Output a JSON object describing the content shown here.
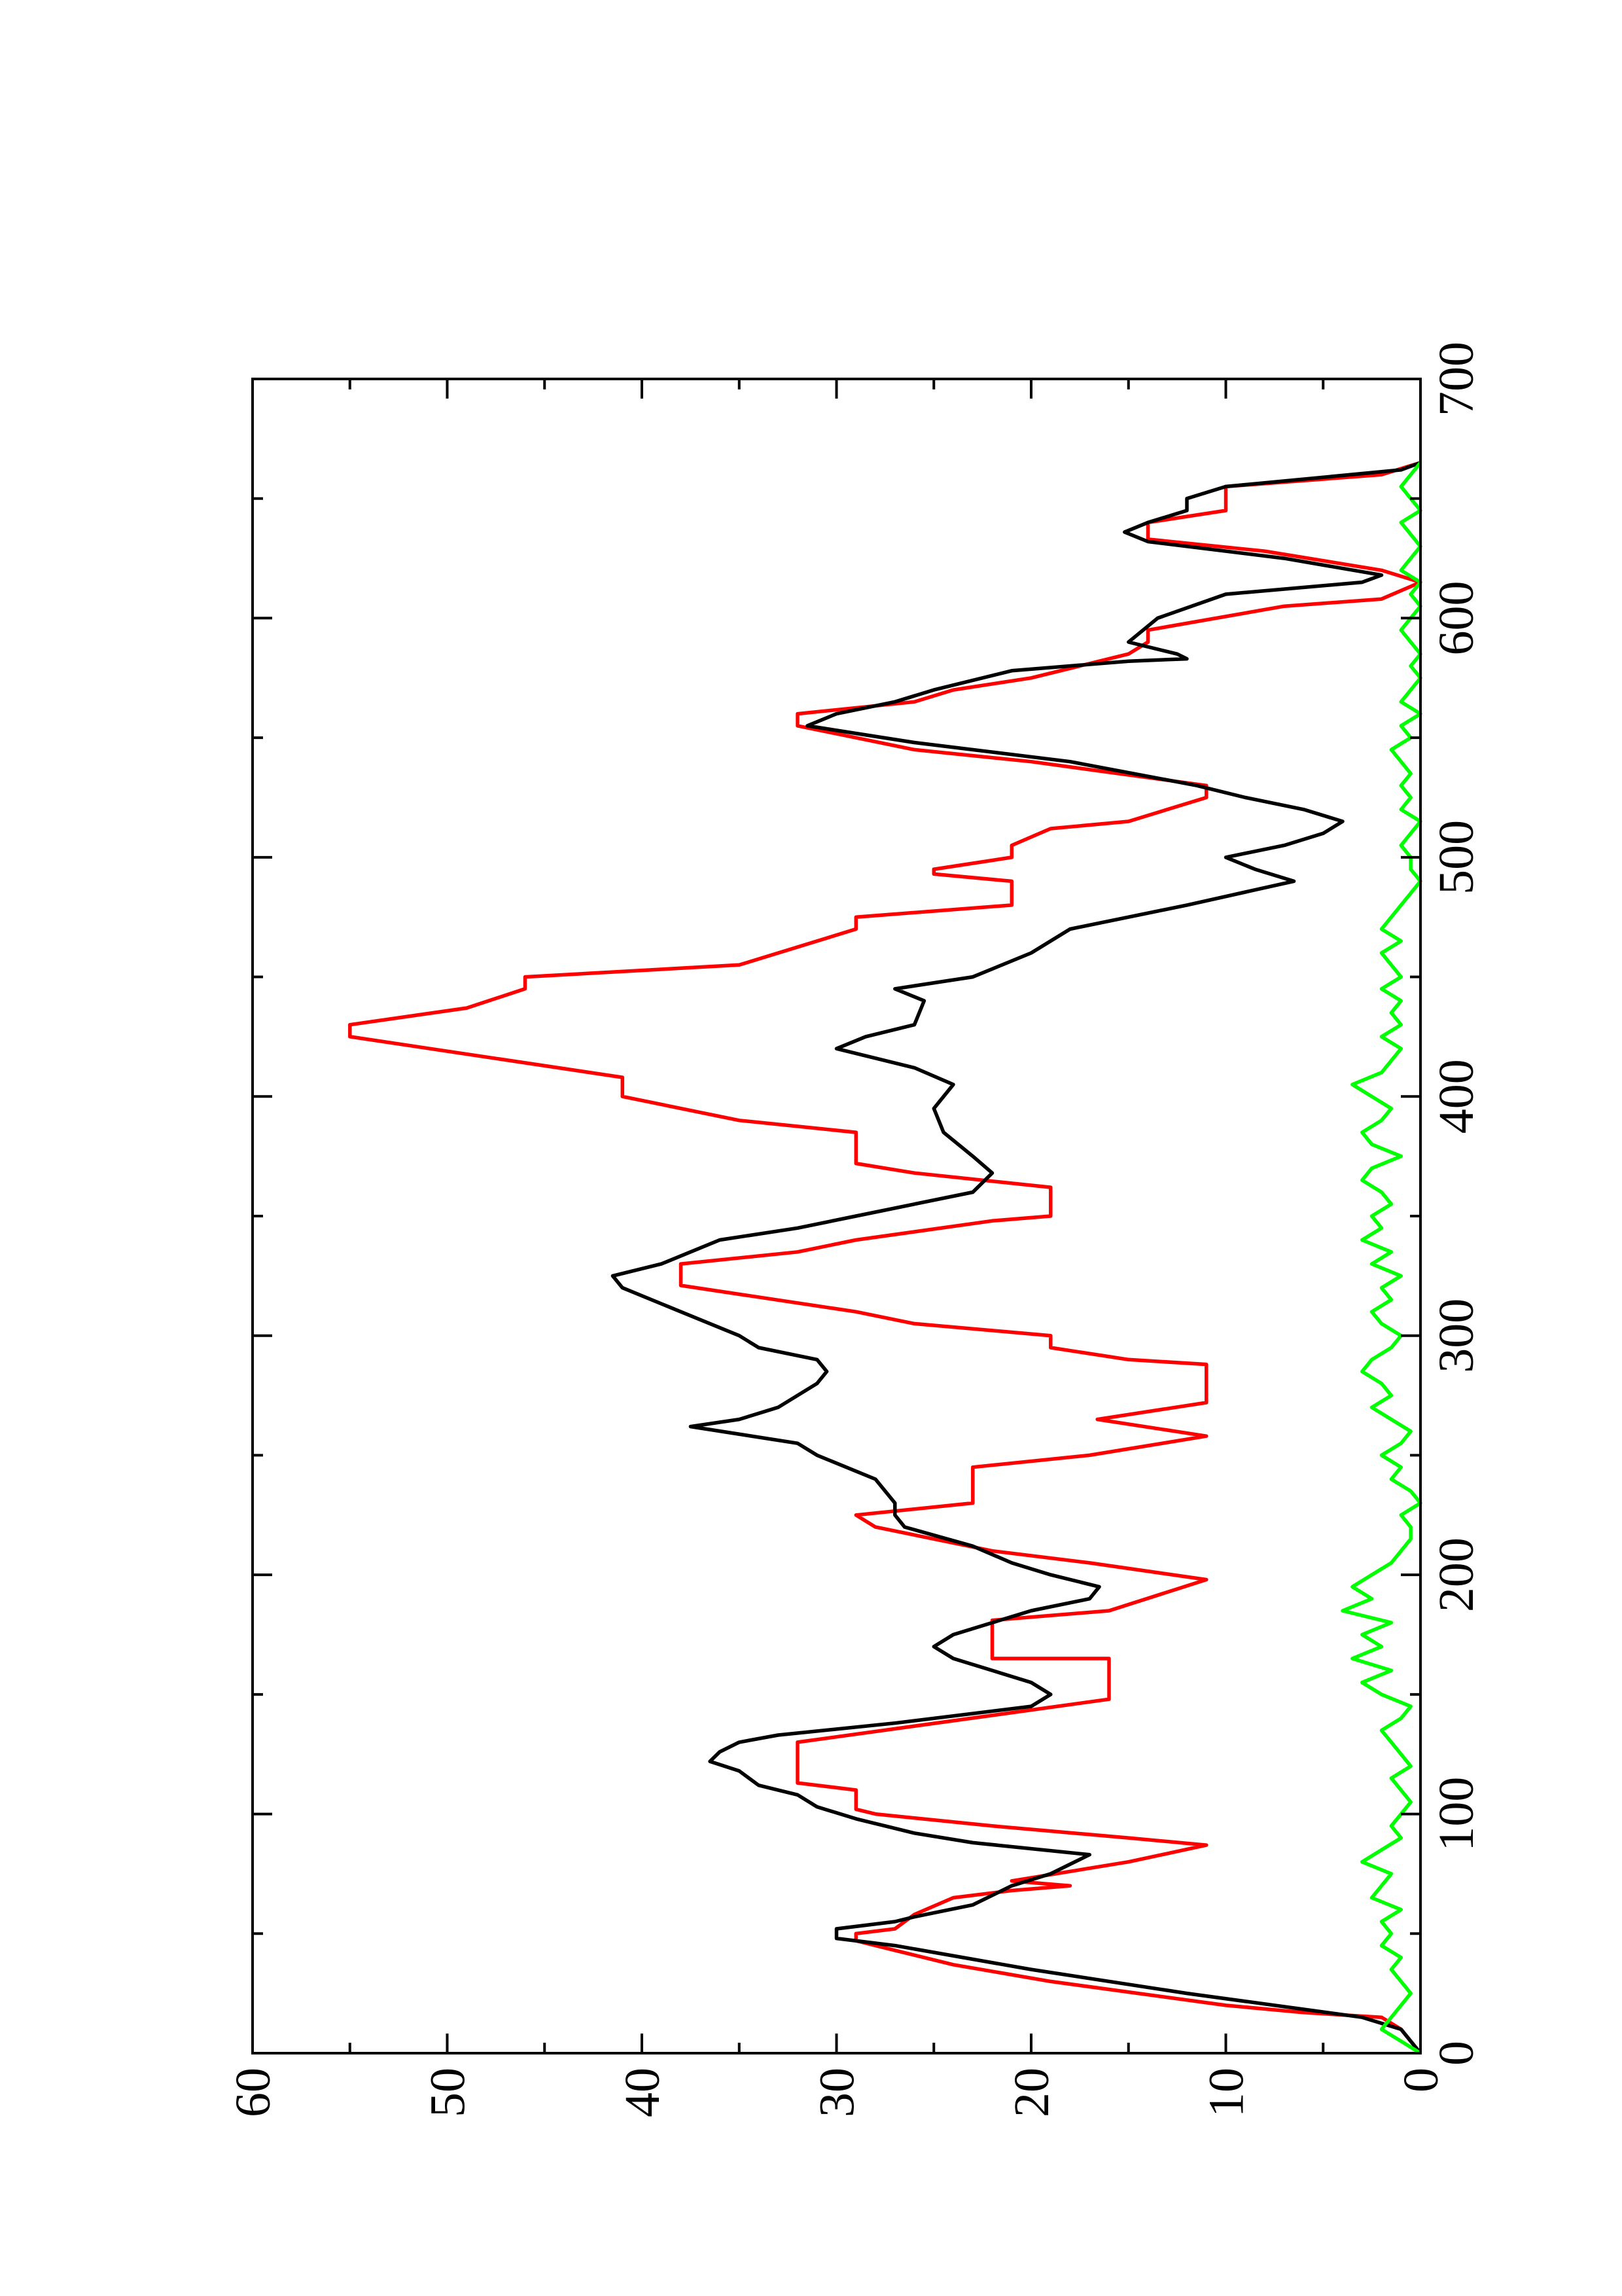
{
  "chart_data": {
    "type": "line",
    "xlim": [
      0,
      700
    ],
    "xticks": [
      0,
      100,
      200,
      300,
      400,
      500,
      600,
      700
    ],
    "xminor_ticks": [
      50,
      150,
      250,
      350,
      450,
      550,
      650
    ],
    "ylim": [
      0,
      60
    ],
    "yticks": [
      0,
      10,
      20,
      30,
      40,
      50,
      60
    ],
    "yminor_ticks": [
      5,
      15,
      25,
      35,
      45,
      55
    ],
    "series": [
      {
        "color": "#ff0000",
        "x": [
          0,
          10,
          15,
          17,
          20,
          30,
          37,
          43,
          47,
          50,
          52,
          58,
          65,
          68,
          70,
          72,
          80,
          87,
          90,
          95,
          100,
          102,
          110,
          113,
          130,
          148,
          165,
          165,
          181,
          185,
          198,
          205,
          210,
          220,
          225,
          230,
          245,
          250,
          258,
          265,
          272,
          288,
          290,
          295,
          300,
          305,
          310,
          321,
          330,
          335,
          340,
          348,
          350,
          362,
          368,
          372,
          385,
          390,
          400,
          408,
          425,
          430,
          437,
          445,
          450,
          455,
          470,
          475,
          480,
          490,
          493,
          495,
          500,
          505,
          512,
          515,
          525,
          530,
          540,
          545,
          555,
          560,
          565,
          570,
          575,
          585,
          590,
          595,
          605,
          608,
          615,
          620,
          628,
          633,
          640,
          645,
          655,
          660,
          665
        ],
        "values": [
          0,
          1,
          2,
          6,
          10,
          19,
          24,
          27,
          29,
          29,
          27,
          26,
          24,
          21,
          18,
          21,
          15,
          11,
          15,
          22,
          28,
          29,
          29,
          32,
          32,
          16,
          16,
          22,
          22,
          16,
          11,
          17,
          22,
          28,
          29,
          23,
          23,
          17,
          11,
          16.6,
          11,
          11,
          15,
          19,
          19,
          26,
          29,
          38,
          38,
          32,
          29,
          22,
          19,
          19,
          26,
          29,
          29,
          35,
          41,
          41,
          55,
          55,
          49,
          46,
          46,
          35,
          29,
          29,
          21,
          21,
          25,
          25,
          21,
          21,
          19,
          15,
          11,
          11,
          20,
          26,
          32,
          32,
          26,
          24,
          20,
          15,
          14,
          14,
          7,
          2,
          0,
          2,
          8,
          14,
          14,
          10,
          10,
          2,
          0
        ]
      },
      {
        "color": "#000000",
        "x": [
          0,
          10,
          15,
          25,
          35,
          45,
          48,
          52,
          55,
          57,
          62,
          70,
          75,
          83,
          88,
          92,
          98,
          103,
          108,
          112,
          118,
          122,
          126,
          130,
          133,
          138,
          145,
          150,
          155,
          160,
          165,
          170,
          175,
          180,
          185,
          190,
          195,
          200,
          205,
          212,
          220,
          225,
          230,
          240,
          250,
          255,
          262,
          265,
          270,
          280,
          285,
          290,
          295,
          300,
          310,
          320,
          325,
          330,
          340,
          345,
          350,
          360,
          368,
          375,
          385,
          395,
          405,
          412,
          420,
          425,
          430,
          440,
          445,
          450,
          460,
          470,
          480,
          490,
          495,
          500,
          505,
          510,
          515,
          520,
          525,
          530,
          540,
          548,
          555,
          560,
          565,
          570,
          578,
          582,
          583,
          585,
          590,
          600,
          610,
          615,
          618,
          625,
          632,
          636,
          640,
          645,
          650,
          655,
          662,
          665
        ],
        "values": [
          0,
          1,
          3,
          12,
          20,
          27,
          30,
          30,
          27,
          26,
          23,
          21,
          19,
          17,
          23,
          26,
          29,
          31,
          32,
          34,
          35,
          36.5,
          36,
          35,
          33,
          27,
          20,
          19,
          20,
          22,
          24,
          25,
          24,
          22,
          20,
          17,
          16.5,
          19,
          21,
          23,
          26.5,
          27,
          27,
          28,
          31,
          32,
          37.5,
          35,
          33,
          31,
          30.5,
          31,
          34,
          35,
          38,
          41,
          41.5,
          39,
          36,
          32,
          29,
          23,
          22,
          23,
          24.5,
          25,
          24,
          26,
          30,
          28.5,
          26,
          25.5,
          27,
          23,
          20,
          18,
          12,
          6.5,
          8.5,
          10,
          7,
          5,
          4,
          6,
          9,
          11.5,
          18,
          26,
          31.5,
          30,
          27,
          25,
          21,
          15,
          12,
          12.5,
          15,
          13.5,
          10,
          3,
          2,
          7,
          14,
          15.2,
          14,
          12,
          12,
          10,
          1,
          0
        ]
      },
      {
        "color": "#00ff00",
        "x": [
          0,
          5,
          10,
          15,
          20,
          25,
          30,
          35,
          40,
          45,
          50,
          55,
          60,
          65,
          70,
          75,
          80,
          85,
          90,
          95,
          100,
          105,
          110,
          115,
          120,
          125,
          130,
          135,
          140,
          145,
          150,
          155,
          160,
          165,
          170,
          175,
          180,
          185,
          190,
          195,
          200,
          205,
          210,
          215,
          220,
          225,
          230,
          235,
          240,
          245,
          250,
          255,
          260,
          265,
          270,
          275,
          280,
          285,
          290,
          295,
          300,
          305,
          310,
          315,
          320,
          325,
          330,
          335,
          340,
          345,
          350,
          355,
          360,
          365,
          370,
          375,
          380,
          385,
          390,
          395,
          400,
          405,
          410,
          415,
          420,
          425,
          430,
          435,
          440,
          445,
          450,
          455,
          460,
          465,
          470,
          475,
          480,
          485,
          490,
          495,
          500,
          505,
          510,
          515,
          520,
          525,
          530,
          535,
          540,
          545,
          550,
          555,
          560,
          565,
          570,
          575,
          580,
          585,
          590,
          595,
          600,
          605,
          610,
          615,
          620,
          625,
          630,
          635,
          640,
          645,
          650,
          655,
          660,
          665
        ],
        "values": [
          0,
          1,
          2,
          1.5,
          1,
          0.5,
          1,
          1.5,
          1,
          2,
          1.5,
          2,
          1,
          2.5,
          2,
          1.5,
          3,
          2,
          1,
          1.5,
          1,
          0.5,
          1,
          1.5,
          0.5,
          1,
          1.5,
          2,
          1,
          0.5,
          2,
          3,
          1.5,
          3.5,
          2,
          3,
          1.5,
          4,
          2.5,
          3.5,
          2.5,
          1.5,
          1,
          0.5,
          0.5,
          1,
          0,
          0.5,
          1.5,
          1,
          2,
          1,
          0.5,
          1.5,
          2.5,
          1.5,
          2,
          3,
          2.5,
          1.5,
          1,
          2,
          2.5,
          1.5,
          2,
          1,
          2.5,
          1.5,
          3,
          2,
          2.5,
          1.5,
          2,
          3,
          2.5,
          1,
          2.5,
          3,
          2,
          1.5,
          2.5,
          3.5,
          2,
          1.5,
          1,
          2,
          1,
          1.5,
          1,
          2,
          1,
          1.5,
          2,
          1,
          2,
          1.5,
          1,
          0.5,
          0,
          0.5,
          0.5,
          1,
          0.5,
          0,
          1,
          0.5,
          1,
          0.5,
          1,
          1.5,
          0.5,
          1,
          0,
          1,
          0.5,
          0,
          0.5,
          0,
          0.5,
          1,
          0.5,
          0,
          0.5,
          0,
          1,
          0.5,
          0,
          0.5,
          1,
          0,
          0.5,
          1,
          0.5,
          0
        ]
      }
    ]
  }
}
